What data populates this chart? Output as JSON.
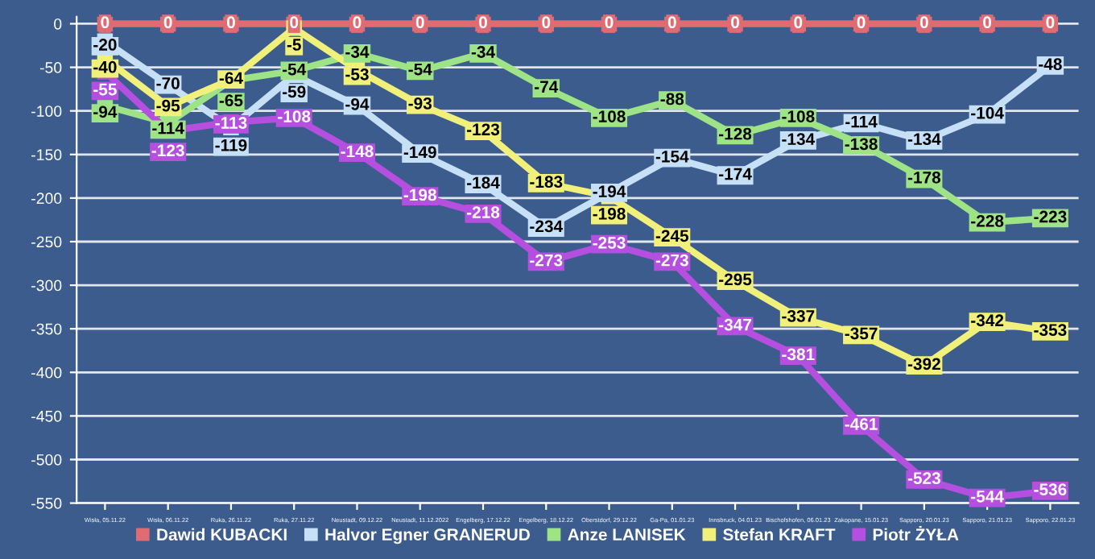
{
  "chart_data": {
    "type": "line",
    "categories": [
      "Wisła, 05.11.22",
      "Wisła, 06.11.22",
      "Ruka, 26.11.22",
      "Ruka, 27.11.22",
      "Neustadt, 09.12.22",
      "Neustadt, 11.12.2022",
      "Engelberg, 17.12.22",
      "Engelberg, 18.12.22",
      "Oberstdorf, 29.12.22",
      "Ga-Pa, 01.01.23",
      "Innsbruck, 04.01.23",
      "Bischofshofen, 06.01.23",
      "Zakopane, 15.01.23",
      "Sapporo, 20.01.23",
      "Sapporo, 21.01.23",
      "Sapporo, 22.01.23"
    ],
    "series": [
      {
        "name": "Dawid KUBACKI",
        "color": "#e06b73",
        "values": [
          0,
          0,
          0,
          0,
          0,
          0,
          0,
          0,
          0,
          0,
          0,
          0,
          0,
          0,
          0,
          0
        ]
      },
      {
        "name": "Halvor Egner GRANERUD",
        "color": "#c6e0f7",
        "values": [
          -20,
          -70,
          -119,
          -59,
          -94,
          -149,
          -184,
          -234,
          -194,
          -154,
          -174,
          -134,
          -114,
          -134,
          -104,
          -48
        ]
      },
      {
        "name": "Anze LANISEK",
        "color": "#9ee486",
        "values": [
          -94,
          -114,
          -65,
          -54,
          -34,
          -54,
          -34,
          -74,
          -108,
          -88,
          -128,
          -108,
          -138,
          -178,
          -228,
          -223
        ]
      },
      {
        "name": "Stefan KRAFT",
        "color": "#f0f07a",
        "values": [
          -40,
          -95,
          -64,
          -5,
          -53,
          -93,
          -123,
          -183,
          -198,
          -245,
          -295,
          -337,
          -357,
          -392,
          -342,
          -353
        ]
      },
      {
        "name": "Piotr ŻYŁA",
        "color": "#b54fe0",
        "values": [
          -55,
          -123,
          -113,
          -108,
          -148,
          -198,
          -218,
          -273,
          -253,
          -273,
          -347,
          -381,
          -461,
          -523,
          -544,
          -536
        ]
      }
    ],
    "ylim": [
      -550,
      8
    ],
    "yticks": [
      0,
      -50,
      -100,
      -150,
      -200,
      -250,
      -300,
      -350,
      -400,
      -450,
      -500,
      -550
    ],
    "grid": "y",
    "legend": "bottom",
    "data_labels": true,
    "marker": "square",
    "line_style": "solid"
  }
}
